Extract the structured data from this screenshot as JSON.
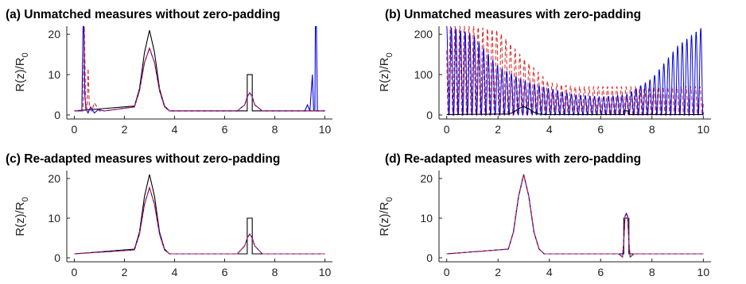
{
  "chart_data": [
    {
      "type": "line",
      "title": "(a) Unmatched measures without zero-padding",
      "ylabel": "R(z)/R",
      "ylabel_sub": "0",
      "xlim": [
        -0.3,
        10.3
      ],
      "ylim": [
        -1,
        22
      ],
      "xticks": [
        "0",
        "2",
        "4",
        "6",
        "8",
        "10"
      ],
      "yticks": [
        "0",
        "10",
        "20"
      ],
      "series": [
        {
          "color": "#000000",
          "style": "solid",
          "x": [
            0,
            2.4,
            2.6,
            2.8,
            3.0,
            3.2,
            3.4,
            3.6,
            3.8,
            6.9,
            6.9,
            7.1,
            7.1,
            10
          ],
          "y": [
            1,
            2.2,
            6.5,
            15.5,
            21,
            15.5,
            6.5,
            2.2,
            1,
            1,
            10,
            10,
            1,
            1
          ]
        },
        {
          "color": "#0000dd",
          "style": "solid",
          "x": [
            0,
            0.3,
            0.35,
            0.38,
            0.42,
            0.46,
            0.55,
            0.65,
            0.8,
            0.95,
            1.2,
            2.4,
            2.6,
            2.8,
            3.0,
            3.2,
            3.4,
            3.6,
            3.8,
            6.5,
            6.8,
            6.9,
            7.0,
            7.1,
            7.2,
            7.5,
            9.2,
            9.3,
            9.4,
            9.5,
            9.55,
            9.6,
            9.62,
            9.66,
            9.7,
            10
          ],
          "y": [
            1,
            1,
            22,
            22,
            5,
            1.5,
            0.5,
            2,
            0.5,
            1.3,
            1,
            2,
            6,
            13,
            16.5,
            13,
            6,
            2,
            1,
            1,
            2.5,
            4.5,
            5.5,
            4.5,
            2.5,
            1,
            1,
            2.5,
            1,
            10,
            1,
            1,
            22,
            22,
            1,
            1
          ]
        },
        {
          "color": "#dd2222",
          "style": "dashed",
          "x": [
            0,
            0.35,
            0.4,
            0.45,
            0.5,
            0.55,
            0.6,
            0.7,
            0.8,
            1.0,
            1.2,
            2.4,
            2.6,
            2.8,
            3.0,
            3.2,
            3.4,
            3.6,
            3.8,
            6.5,
            6.8,
            6.9,
            7.0,
            7.1,
            7.2,
            7.5,
            10
          ],
          "y": [
            1,
            1,
            22,
            3,
            1,
            11.5,
            2,
            1,
            3,
            1,
            1,
            2,
            6,
            13,
            16.7,
            13,
            6,
            2,
            1,
            1,
            2.5,
            4.5,
            5.5,
            4.5,
            2.5,
            1,
            1
          ]
        }
      ]
    },
    {
      "type": "line",
      "title": "(b) Unmatched measures with zero-padding",
      "ylabel": "R(z)/R",
      "ylabel_sub": "0",
      "xlim": [
        -0.3,
        10.3
      ],
      "ylim": [
        -10,
        220
      ],
      "xticks": [
        "0",
        "2",
        "4",
        "6",
        "8",
        "10"
      ],
      "yticks": [
        "0",
        "100",
        "200"
      ],
      "oscillation": {
        "blue_envelope": {
          "x": [
            0,
            1,
            2,
            3,
            4,
            5,
            6,
            7,
            8,
            9,
            10
          ],
          "y": [
            220,
            200,
            120,
            85,
            65,
            50,
            45,
            50,
            90,
            170,
            220
          ]
        },
        "red_envelope": {
          "x": [
            0,
            1,
            2,
            3,
            4,
            5,
            6,
            7,
            8,
            9,
            10
          ],
          "y": [
            220,
            220,
            210,
            140,
            80,
            70,
            70,
            70,
            70,
            70,
            70
          ]
        }
      },
      "series": [
        {
          "color": "#000000",
          "style": "solid",
          "x": [
            0,
            2.4,
            2.6,
            2.8,
            3.0,
            3.2,
            3.4,
            3.6,
            3.8,
            6.9,
            6.9,
            7.1,
            7.1,
            10
          ],
          "y": [
            1,
            2.2,
            6.5,
            15.5,
            21,
            15.5,
            6.5,
            2.2,
            1,
            1,
            10,
            10,
            1,
            1
          ]
        }
      ]
    },
    {
      "type": "line",
      "title": "(c) Re-adapted measures without zero-padding",
      "ylabel": "R(z)/R",
      "ylabel_sub": "0",
      "xlim": [
        -0.3,
        10.3
      ],
      "ylim": [
        -1,
        22
      ],
      "xticks": [
        "0",
        "2",
        "4",
        "6",
        "8",
        "10"
      ],
      "yticks": [
        "0",
        "10",
        "20"
      ],
      "series": [
        {
          "color": "#000000",
          "style": "solid",
          "x": [
            0,
            2.4,
            2.6,
            2.8,
            3.0,
            3.2,
            3.4,
            3.6,
            3.8,
            6.9,
            6.9,
            7.1,
            7.1,
            10
          ],
          "y": [
            1,
            2.2,
            6.5,
            15.5,
            21,
            15.5,
            6.5,
            2.2,
            1,
            1,
            10,
            10,
            1,
            1
          ]
        },
        {
          "color": "#0000dd",
          "style": "solid",
          "x": [
            0,
            2.4,
            2.6,
            2.8,
            3.0,
            3.2,
            3.4,
            3.6,
            3.8,
            6.5,
            6.8,
            6.9,
            7.0,
            7.1,
            7.2,
            7.5,
            10
          ],
          "y": [
            1,
            2,
            6,
            13.5,
            17.7,
            13.5,
            6,
            2,
            1,
            1,
            3,
            5,
            6,
            5,
            3,
            1,
            1
          ]
        },
        {
          "color": "#dd2222",
          "style": "dashed",
          "x": [
            0,
            2.4,
            2.6,
            2.8,
            3.0,
            3.2,
            3.4,
            3.6,
            3.8,
            6.5,
            6.8,
            6.9,
            7.0,
            7.1,
            7.2,
            7.5,
            10
          ],
          "y": [
            1,
            2,
            6,
            13.5,
            17.7,
            13.5,
            6,
            2,
            1,
            1,
            3,
            5,
            6,
            5,
            3,
            1,
            1
          ]
        }
      ]
    },
    {
      "type": "line",
      "title": "(d) Re-adapted measures with zero-padding",
      "ylabel": "R(z)/R",
      "ylabel_sub": "0",
      "xlim": [
        -0.3,
        10.3
      ],
      "ylim": [
        -1,
        22
      ],
      "xticks": [
        "0",
        "2",
        "4",
        "6",
        "8",
        "10"
      ],
      "yticks": [
        "0",
        "10",
        "20"
      ],
      "series": [
        {
          "color": "#000000",
          "style": "solid",
          "x": [
            0,
            2.4,
            2.6,
            2.8,
            3.0,
            3.2,
            3.4,
            3.6,
            3.8,
            6.9,
            6.9,
            7.1,
            7.1,
            10
          ],
          "y": [
            1,
            2.2,
            6.5,
            15.5,
            21,
            15.5,
            6.5,
            2.2,
            1,
            1,
            10,
            10,
            1,
            1
          ]
        },
        {
          "color": "#0000dd",
          "style": "solid",
          "x": [
            0,
            2.4,
            2.6,
            2.8,
            3.0,
            3.2,
            3.4,
            3.6,
            3.8,
            6.7,
            6.85,
            6.9,
            6.95,
            7.0,
            7.05,
            7.1,
            7.15,
            7.3,
            10
          ],
          "y": [
            1,
            2.2,
            6.5,
            15.5,
            21,
            15.5,
            6.5,
            2.2,
            1,
            1,
            0.2,
            4,
            10.5,
            11.2,
            10.5,
            4,
            0.2,
            1,
            1
          ]
        },
        {
          "color": "#dd2222",
          "style": "dashed",
          "x": [
            0,
            2.4,
            2.6,
            2.8,
            3.0,
            3.2,
            3.4,
            3.6,
            3.8,
            6.7,
            6.85,
            6.9,
            6.95,
            7.0,
            7.05,
            7.1,
            7.15,
            7.3,
            10
          ],
          "y": [
            1,
            2.2,
            6.5,
            15.5,
            21,
            15.5,
            6.5,
            2.2,
            1,
            1,
            0.3,
            4,
            10.3,
            10.8,
            10.3,
            4,
            0.3,
            1,
            1
          ]
        }
      ]
    }
  ]
}
